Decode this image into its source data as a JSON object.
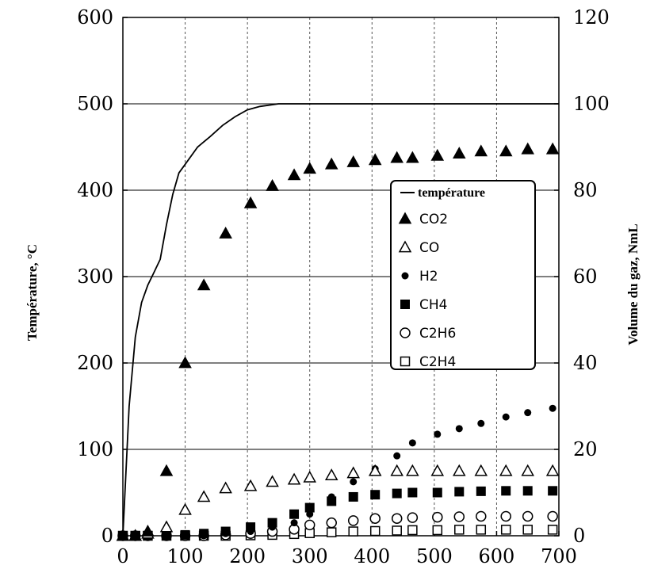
{
  "chart_data": {
    "type": "scatter",
    "title": "",
    "xlabel": "",
    "ylabel_left": "Température, °C",
    "ylabel_right": "Volume du gaz, NmL",
    "xlim": [
      0,
      700
    ],
    "ylim_left": [
      0,
      600
    ],
    "ylim_right": [
      0,
      120
    ],
    "x_ticks": [
      "0",
      "100",
      "200",
      "300",
      "400",
      "500",
      "600",
      "700"
    ],
    "y_ticks_left": [
      "0",
      "100",
      "200",
      "300",
      "400",
      "500",
      "600"
    ],
    "y_ticks_right": [
      "0",
      "20",
      "40",
      "60",
      "80",
      "100",
      "120"
    ],
    "grid": true,
    "legend_position": "right-middle",
    "temperature_line": {
      "name": "température",
      "x": [
        0,
        10,
        20,
        30,
        40,
        50,
        60,
        70,
        80,
        90,
        100,
        120,
        140,
        160,
        180,
        200,
        220,
        250,
        300,
        400,
        500,
        600,
        700
      ],
      "y": [
        0,
        150,
        230,
        270,
        290,
        305,
        320,
        360,
        395,
        420,
        430,
        450,
        462,
        475,
        485,
        493,
        497,
        500,
        500,
        500,
        500,
        500,
        500
      ]
    },
    "series": [
      {
        "name": "CO2",
        "marker": "filled-triangle",
        "x": [
          0,
          20,
          40,
          70,
          100,
          130,
          165,
          205,
          240,
          275,
          300,
          335,
          370,
          405,
          440,
          465,
          505,
          540,
          575,
          615,
          650,
          690
        ],
        "y": [
          0,
          0,
          1,
          15,
          40,
          58,
          70,
          77,
          81,
          83.5,
          85,
          86,
          86.5,
          87,
          87.5,
          87.5,
          88,
          88.5,
          89,
          89,
          89.5,
          89.5
        ]
      },
      {
        "name": "CO",
        "marker": "open-triangle",
        "x": [
          0,
          20,
          40,
          70,
          100,
          130,
          165,
          205,
          240,
          275,
          300,
          335,
          370,
          405,
          440,
          465,
          505,
          540,
          575,
          615,
          650,
          690
        ],
        "y": [
          0,
          0,
          0.5,
          2,
          6,
          9,
          11,
          11.5,
          12.5,
          13,
          13.5,
          14,
          14.5,
          15,
          15,
          15,
          15,
          15,
          15,
          15,
          15,
          15
        ]
      },
      {
        "name": "H2",
        "marker": "filled-circle",
        "x": [
          0,
          20,
          40,
          70,
          100,
          130,
          165,
          205,
          240,
          275,
          300,
          335,
          370,
          405,
          440,
          465,
          505,
          540,
          575,
          615,
          650,
          690
        ],
        "y": [
          0,
          0,
          0,
          0,
          0,
          0,
          0.5,
          1,
          2,
          3,
          5,
          9,
          12.5,
          15.5,
          18.5,
          21.5,
          23.5,
          24.8,
          26,
          27.5,
          28.5,
          29.5
        ]
      },
      {
        "name": "CH4",
        "marker": "filled-square",
        "x": [
          0,
          20,
          40,
          70,
          100,
          130,
          165,
          205,
          240,
          275,
          300,
          335,
          370,
          405,
          440,
          465,
          505,
          540,
          575,
          615,
          650,
          690
        ],
        "y": [
          0,
          0,
          0,
          0,
          0.2,
          0.5,
          1,
          2,
          3,
          5,
          6.5,
          8,
          9,
          9.5,
          9.8,
          10,
          10,
          10.2,
          10.3,
          10.4,
          10.4,
          10.4
        ]
      },
      {
        "name": "C2H6",
        "marker": "open-circle",
        "x": [
          0,
          20,
          40,
          70,
          100,
          130,
          165,
          205,
          240,
          275,
          300,
          335,
          370,
          405,
          440,
          465,
          505,
          540,
          575,
          615,
          650,
          690
        ],
        "y": [
          0,
          0,
          0,
          0,
          0,
          0,
          0.2,
          0.5,
          1,
          1.5,
          2.5,
          3,
          3.5,
          4,
          4,
          4.2,
          4.3,
          4.4,
          4.5,
          4.5,
          4.5,
          4.5
        ]
      },
      {
        "name": "C2H4",
        "marker": "open-square",
        "x": [
          0,
          20,
          40,
          70,
          100,
          130,
          165,
          205,
          240,
          275,
          300,
          335,
          370,
          405,
          440,
          465,
          505,
          540,
          575,
          615,
          650,
          690
        ],
        "y": [
          0,
          0,
          0,
          0,
          0,
          0,
          0,
          0.1,
          0.2,
          0.4,
          0.6,
          0.8,
          1,
          1.1,
          1.2,
          1.3,
          1.3,
          1.4,
          1.4,
          1.4,
          1.4,
          1.4
        ]
      }
    ]
  }
}
